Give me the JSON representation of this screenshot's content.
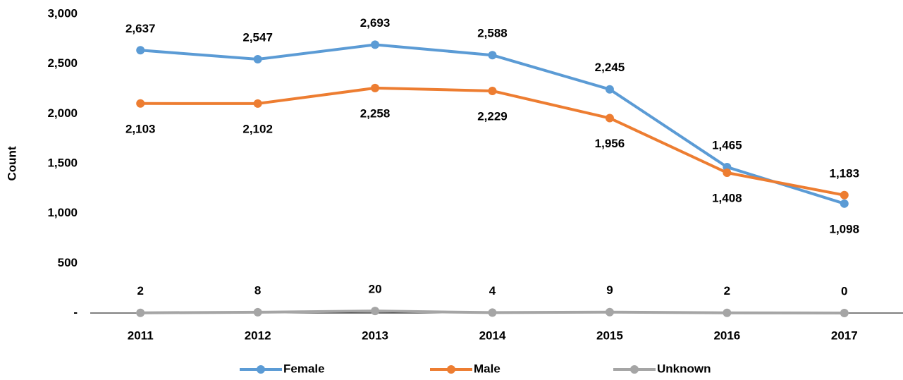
{
  "chart_data": {
    "type": "line",
    "y_label": "Count",
    "categories": [
      "2011",
      "2012",
      "2013",
      "2014",
      "2015",
      "2016",
      "2017"
    ],
    "series": [
      {
        "name": "Female",
        "color": "#5b9bd5",
        "values": [
          2637,
          2547,
          2693,
          2588,
          2245,
          1465,
          1098
        ],
        "value_labels": [
          "2,637",
          "2,547",
          "2,693",
          "2,588",
          "2,245",
          "1,465",
          "1,098"
        ]
      },
      {
        "name": "Male",
        "color": "#ed7d31",
        "values": [
          2103,
          2102,
          2258,
          2229,
          1956,
          1408,
          1183
        ],
        "value_labels": [
          "2,103",
          "2,102",
          "2,258",
          "2,229",
          "1,956",
          "1,408",
          "1,183"
        ]
      },
      {
        "name": "Unknown",
        "color": "#a5a5a5",
        "values": [
          2,
          8,
          20,
          4,
          9,
          2,
          0
        ]
      }
    ],
    "ylim": [
      0,
      3000
    ],
    "yticks": [
      {
        "value": 0,
        "label": "-"
      },
      500,
      {
        "value": 1000,
        "label": "1,000"
      },
      {
        "value": 1500,
        "label": "1,500"
      },
      {
        "value": 2000,
        "label": "2,000"
      },
      {
        "value": 2500,
        "label": "2,500"
      },
      {
        "value": 3000,
        "label": "3,000"
      }
    ],
    "legend": "bottom"
  }
}
